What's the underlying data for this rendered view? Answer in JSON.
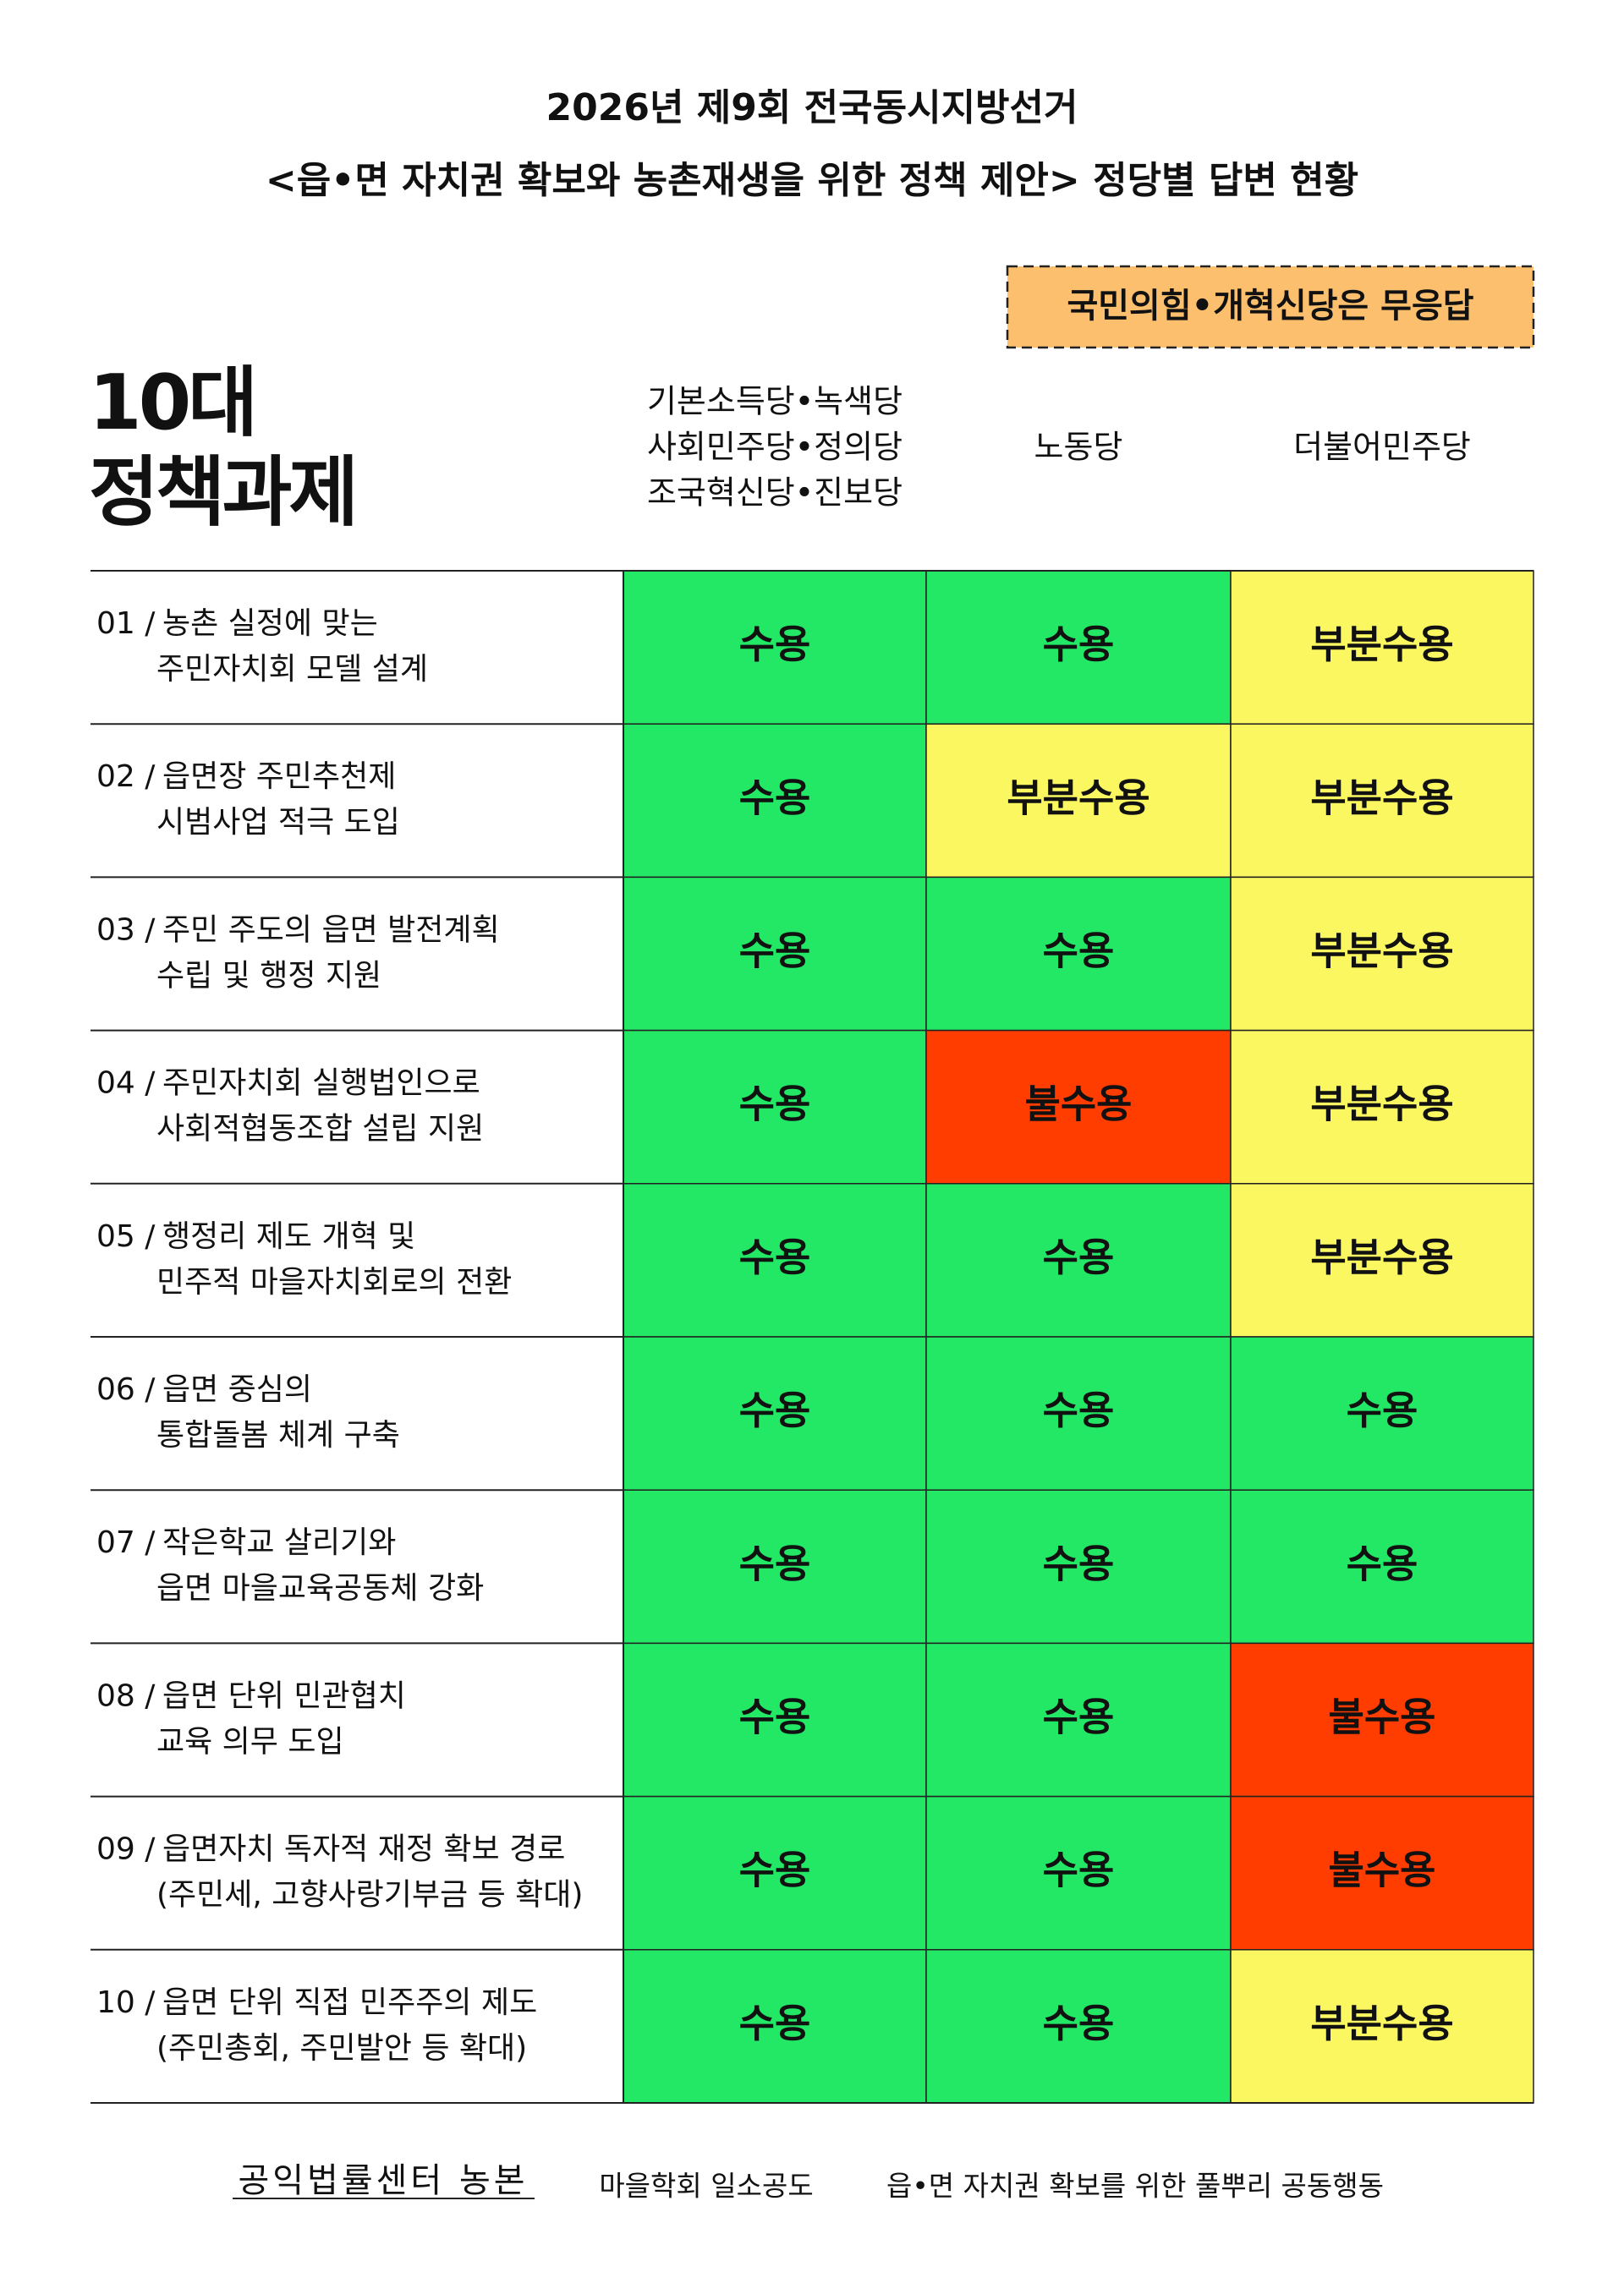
{
  "header": {
    "title_lines": [
      "2026년 제9회 전국동시지방선거",
      "<읍•면 자치권 확보와 농촌재생을 위한 정책 제안> 정당별 답변 현황"
    ],
    "notice": "국민의힘•개혁신당은 무응답"
  },
  "table": {
    "section_title": [
      "10대",
      "정책과제"
    ],
    "columns": [
      {
        "lines": [
          "기본소득당•녹색당",
          "사회민주당•정의당",
          "조국혁신당•진보당"
        ]
      },
      {
        "lines": [
          "노동당"
        ]
      },
      {
        "lines": [
          "더불어민주당"
        ]
      }
    ],
    "status_colors": {
      "수용": {
        "fill": "#22e865",
        "text": "#111111"
      },
      "부분수용": {
        "fill": "#fbf761",
        "text": "#111111"
      },
      "불수용": {
        "fill": "#ff3d00",
        "text": "#ffffff"
      }
    },
    "rows": [
      {
        "label": "01 /",
        "lines": [
          "농촌 실정에 맞는",
          "주민자치회 모델 설계"
        ],
        "responses": [
          "수용",
          "수용",
          "부분수용"
        ]
      },
      {
        "label": "02 /",
        "lines": [
          "읍면장 주민추천제",
          "시범사업 적극 도입"
        ],
        "responses": [
          "수용",
          "부분수용",
          "부분수용"
        ]
      },
      {
        "label": "03 /",
        "lines": [
          "주민 주도의 읍면 발전계획",
          "수립 및 행정 지원"
        ],
        "responses": [
          "수용",
          "수용",
          "부분수용"
        ]
      },
      {
        "label": "04 /",
        "lines": [
          "주민자치회 실행법인으로",
          "사회적협동조합 설립 지원"
        ],
        "responses": [
          "수용",
          "불수용",
          "부분수용"
        ]
      },
      {
        "label": "05 /",
        "lines": [
          "행정리 제도 개혁 및",
          "민주적 마을자치회로의 전환"
        ],
        "responses": [
          "수용",
          "수용",
          "부분수용"
        ]
      },
      {
        "label": "06 /",
        "lines": [
          "읍면 중심의",
          "통합돌봄 체계 구축"
        ],
        "responses": [
          "수용",
          "수용",
          "수용"
        ]
      },
      {
        "label": "07 /",
        "lines": [
          "작은학교 살리기와",
          "읍면 마을교육공동체 강화"
        ],
        "responses": [
          "수용",
          "수용",
          "수용"
        ]
      },
      {
        "label": "08 /",
        "lines": [
          "읍면 단위 민관협치",
          "교육 의무 도입"
        ],
        "responses": [
          "수용",
          "수용",
          "불수용"
        ]
      },
      {
        "label": "09 /",
        "lines": [
          "읍면자치 독자적 재정 확보 경로",
          "(주민세, 고향사랑기부금 등 확대)"
        ],
        "responses": [
          "수용",
          "수용",
          "불수용"
        ]
      },
      {
        "label": "10 /",
        "lines": [
          "읍면 단위 직접 민주주의 제도",
          "(주민총회, 주민발안 등 확대)"
        ],
        "responses": [
          "수용",
          "수용",
          "부분수용"
        ]
      }
    ]
  },
  "footer": {
    "organizations": [
      "공익법률센터 농본",
      "마을학회 일소공도",
      "읍•면 자치권 확보를 위한 풀뿌리 공동행동"
    ]
  }
}
